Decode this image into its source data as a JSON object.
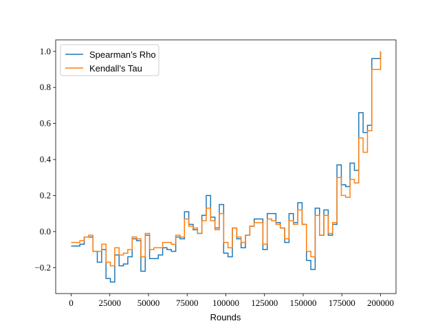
{
  "chart_data": {
    "type": "step",
    "xlabel": "Rounds",
    "x": [
      0,
      2817,
      5634,
      8451,
      11268,
      14085,
      16901,
      19718,
      22535,
      25352,
      28169,
      30986,
      33803,
      36620,
      39437,
      42254,
      45070,
      47887,
      50704,
      53521,
      56338,
      59155,
      61972,
      64789,
      67606,
      70423,
      73239,
      76056,
      78873,
      81690,
      84507,
      87324,
      90141,
      92958,
      95775,
      98592,
      101408,
      104225,
      107042,
      109859,
      112676,
      115493,
      118310,
      121127,
      123944,
      126761,
      129577,
      132394,
      135211,
      138028,
      140845,
      143662,
      146479,
      149296,
      152113,
      154930,
      157746,
      160563,
      163380,
      166197,
      169014,
      171831,
      174648,
      177465,
      180282,
      183099,
      185915,
      188732,
      191549,
      194366,
      197183,
      200000
    ],
    "series": [
      {
        "name": "Spearman’s Rho",
        "color": "#1f77b4",
        "values": [
          -0.08,
          -0.08,
          -0.07,
          -0.03,
          -0.03,
          -0.11,
          -0.17,
          -0.1,
          -0.26,
          -0.28,
          -0.13,
          -0.19,
          -0.18,
          -0.14,
          -0.04,
          -0.05,
          -0.22,
          -0.02,
          -0.15,
          -0.15,
          -0.13,
          -0.09,
          -0.1,
          -0.11,
          -0.03,
          -0.04,
          0.11,
          0.04,
          0.01,
          -0.01,
          0.09,
          0.2,
          0.08,
          0.02,
          0.15,
          -0.12,
          -0.14,
          0.02,
          -0.04,
          -0.09,
          -0.02,
          0.03,
          0.07,
          0.07,
          -0.1,
          0.1,
          0.1,
          0.05,
          0.02,
          -0.06,
          0.1,
          0.05,
          0.16,
          0.04,
          -0.16,
          -0.21,
          0.13,
          -0.02,
          0.12,
          -0.02,
          0.04,
          0.37,
          0.26,
          0.25,
          0.38,
          0.34,
          0.66,
          0.55,
          0.59,
          0.96,
          0.96,
          1.0
        ]
      },
      {
        "name": "Kendall’s Tau",
        "color": "#ff7f0e",
        "values": [
          -0.06,
          -0.06,
          -0.05,
          -0.03,
          -0.02,
          -0.11,
          -0.11,
          -0.07,
          -0.17,
          -0.19,
          -0.09,
          -0.13,
          -0.12,
          -0.1,
          -0.03,
          -0.04,
          -0.14,
          -0.01,
          -0.1,
          -0.09,
          -0.09,
          -0.06,
          -0.06,
          -0.07,
          -0.02,
          -0.03,
          0.07,
          0.03,
          0.02,
          -0.01,
          0.06,
          0.13,
          0.06,
          0.01,
          0.1,
          -0.06,
          -0.09,
          0.02,
          -0.03,
          -0.06,
          -0.02,
          0.03,
          0.05,
          0.05,
          -0.07,
          0.07,
          0.06,
          0.04,
          0.02,
          -0.04,
          0.06,
          0.04,
          0.12,
          0.04,
          -0.11,
          -0.14,
          0.09,
          -0.02,
          0.09,
          -0.01,
          0.05,
          0.3,
          0.2,
          0.19,
          0.29,
          0.27,
          0.52,
          0.44,
          0.56,
          0.9,
          0.9,
          1.0
        ]
      }
    ],
    "xlim": [
      -10000,
      210000
    ],
    "ylim": [
      -0.344,
      1.064
    ],
    "xticks": [
      0,
      25000,
      50000,
      75000,
      100000,
      125000,
      150000,
      175000,
      200000
    ],
    "yticks": [
      {
        "value": -0.2,
        "label": "−0.2"
      },
      {
        "value": 0.0,
        "label": "0.0"
      },
      {
        "value": 0.2,
        "label": "0.2"
      },
      {
        "value": 0.4,
        "label": "0.4"
      },
      {
        "value": 0.6,
        "label": "0.6"
      },
      {
        "value": 0.8,
        "label": "0.8"
      },
      {
        "value": 1.0,
        "label": "1.0"
      }
    ],
    "legend": "upper left"
  }
}
